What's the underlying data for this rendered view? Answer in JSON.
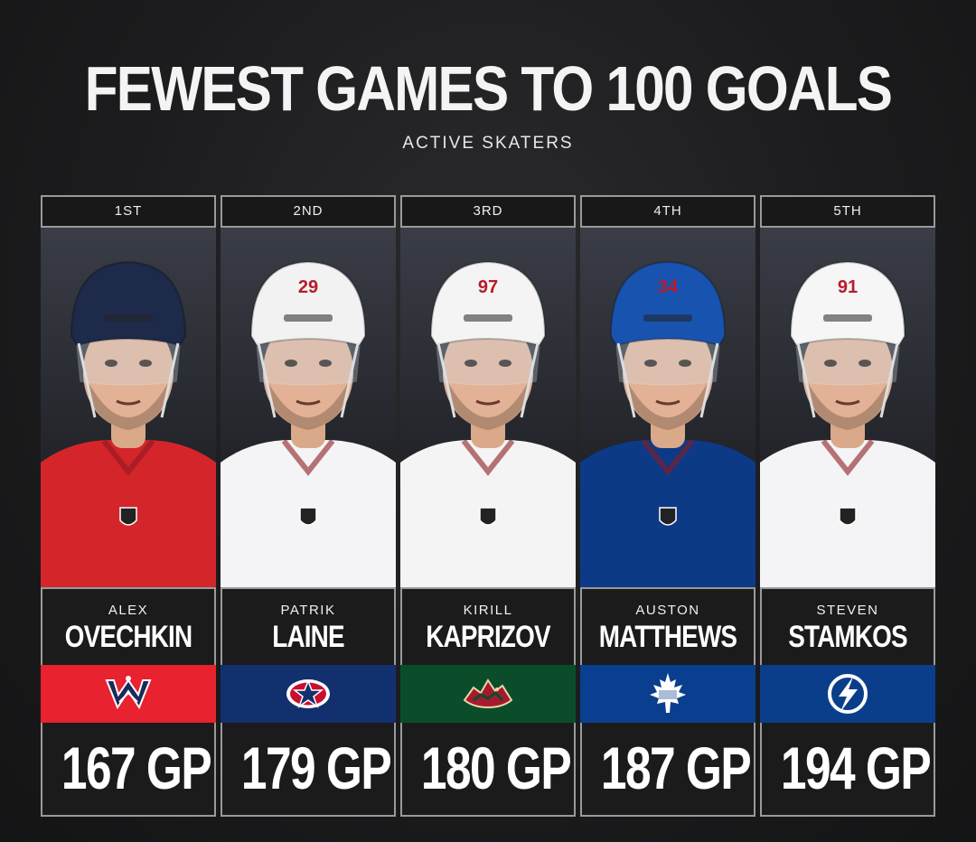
{
  "title": "FEWEST GAMES TO 100 GOALS",
  "subtitle": "ACTIVE SKATERS",
  "players": [
    {
      "rank": "1ST",
      "first_name": "ALEX",
      "last_name": "OVECHKIN",
      "games": "167 GP",
      "team_logo": "capitals-logo",
      "team_color": "#e8222e",
      "jersey_color": "#d4252b",
      "helmet_color": "#1d2a4a",
      "helmet_number": ""
    },
    {
      "rank": "2ND",
      "first_name": "PATRIK",
      "last_name": "LAINE",
      "games": "179 GP",
      "team_logo": "blue-jackets-logo",
      "team_color": "#13306e",
      "jersey_color": "#f4f4f6",
      "helmet_color": "#f2f2f2",
      "helmet_number": "29"
    },
    {
      "rank": "3RD",
      "first_name": "KIRILL",
      "last_name": "KAPRIZOV",
      "games": "180 GP",
      "team_logo": "wild-logo",
      "team_color": "#0b4d2b",
      "jersey_color": "#f4f4f4",
      "helmet_color": "#f4f4f4",
      "helmet_number": "97"
    },
    {
      "rank": "4TH",
      "first_name": "AUSTON",
      "last_name": "MATTHEWS",
      "games": "187 GP",
      "team_logo": "maple-leafs-logo",
      "team_color": "#0a3f8f",
      "jersey_color": "#0d3a86",
      "helmet_color": "#1953b0",
      "helmet_number": "34"
    },
    {
      "rank": "5TH",
      "first_name": "STEVEN",
      "last_name": "STAMKOS",
      "games": "194 GP",
      "team_logo": "lightning-logo",
      "team_color": "#0b3e8a",
      "jersey_color": "#f4f4f6",
      "helmet_color": "#f6f6f6",
      "helmet_number": "91"
    }
  ]
}
